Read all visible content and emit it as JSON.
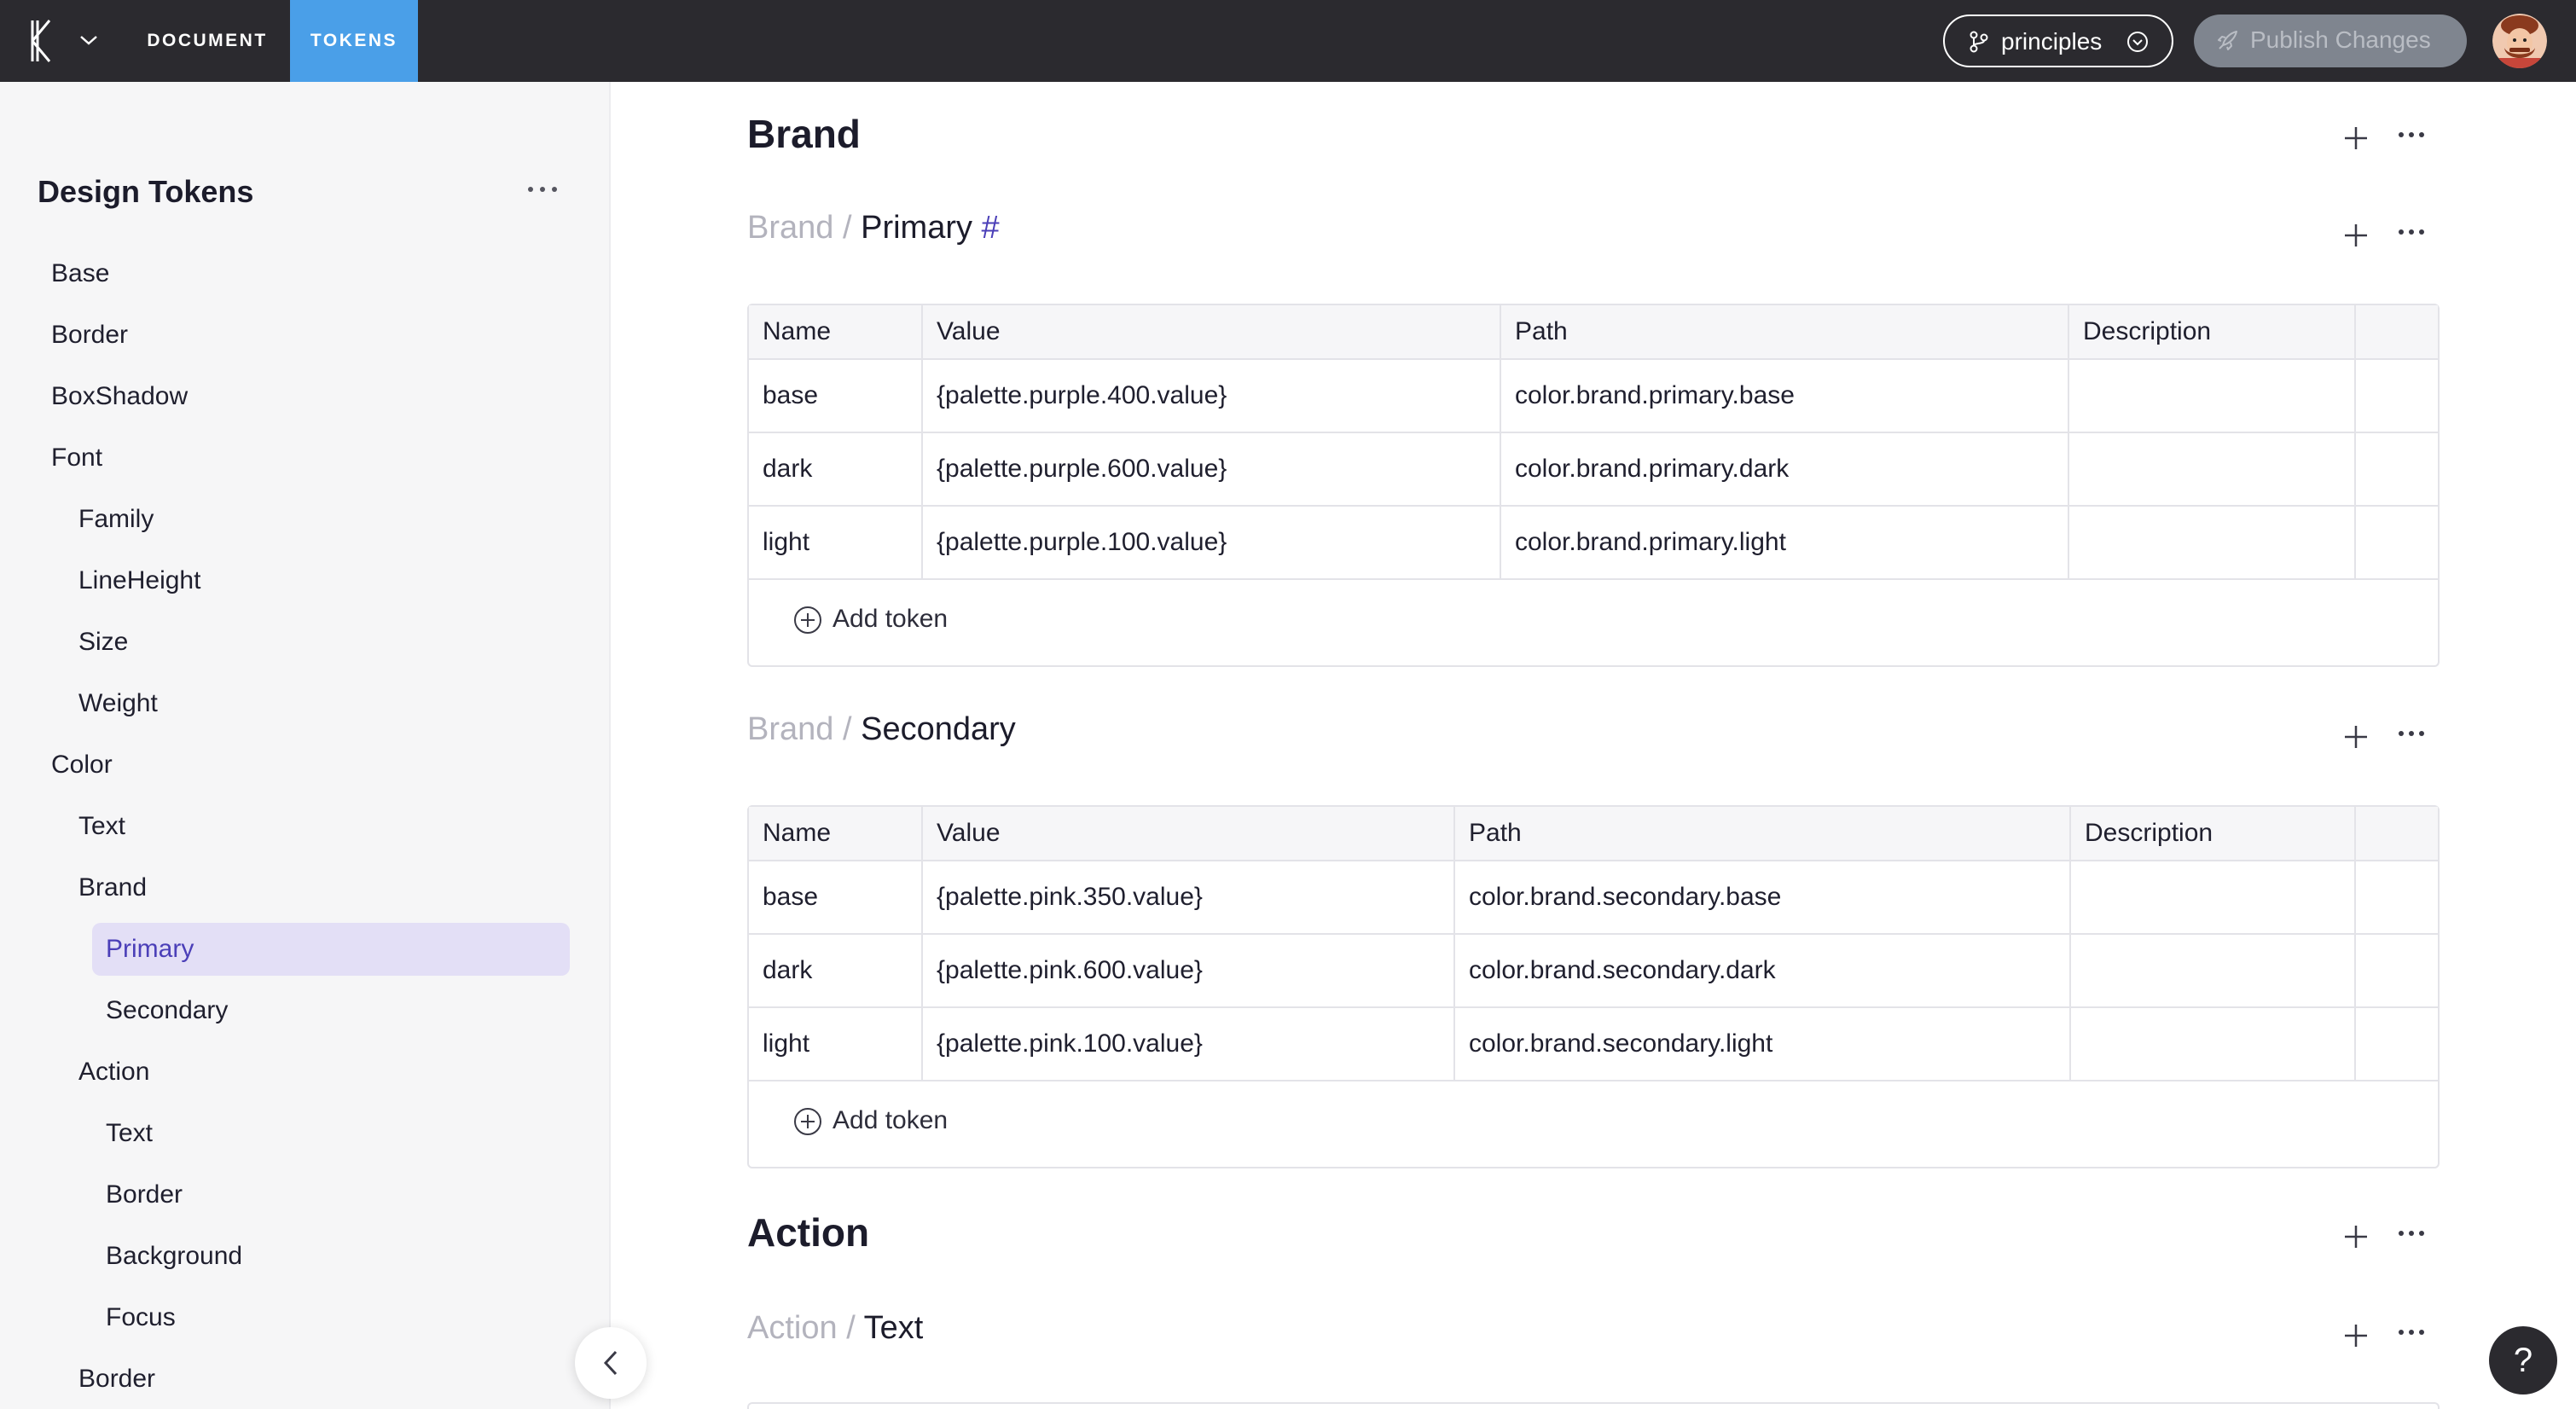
{
  "topbar": {
    "nav": [
      {
        "label": "DOCUMENT"
      },
      {
        "label": "TOKENS"
      }
    ],
    "branch": "principles",
    "publish": "Publish Changes",
    "accent": "#4a9fe8"
  },
  "sidebar": {
    "title": "Design Tokens",
    "items": [
      {
        "label": "Base"
      },
      {
        "label": "Border"
      },
      {
        "label": "BoxShadow"
      },
      {
        "label": "Font"
      },
      {
        "label": "Family"
      },
      {
        "label": "LineHeight"
      },
      {
        "label": "Size"
      },
      {
        "label": "Weight"
      },
      {
        "label": "Color"
      },
      {
        "label": "Text"
      },
      {
        "label": "Brand"
      },
      {
        "label": "Primary"
      },
      {
        "label": "Secondary"
      },
      {
        "label": "Action"
      },
      {
        "label": "Text"
      },
      {
        "label": "Border"
      },
      {
        "label": "Background"
      },
      {
        "label": "Focus"
      },
      {
        "label": "Border"
      }
    ]
  },
  "main": {
    "sections": [
      {
        "title": "Brand",
        "groups": [
          {
            "crumb": "Brand",
            "sep": "/",
            "name": "Primary",
            "hash": "#",
            "headers": [
              "Name",
              "Value",
              "Path",
              "Description"
            ],
            "rows": [
              [
                "base",
                "{palette.purple.400.value}",
                "color.brand.primary.base",
                ""
              ],
              [
                "dark",
                "{palette.purple.600.value}",
                "color.brand.primary.dark",
                ""
              ],
              [
                "light",
                "{palette.purple.100.value}",
                "color.brand.primary.light",
                ""
              ]
            ],
            "add_label": "Add token"
          },
          {
            "crumb": "Brand",
            "sep": "/",
            "name": "Secondary",
            "headers": [
              "Name",
              "Value",
              "Path",
              "Description"
            ],
            "rows": [
              [
                "base",
                "{palette.pink.350.value}",
                "color.brand.secondary.base",
                ""
              ],
              [
                "dark",
                "{palette.pink.600.value}",
                "color.brand.secondary.dark",
                ""
              ],
              [
                "light",
                "{palette.pink.100.value}",
                "color.brand.secondary.light",
                ""
              ]
            ],
            "add_label": "Add token"
          }
        ]
      },
      {
        "title": "Action",
        "groups": [
          {
            "crumb": "Action",
            "sep": "/",
            "name": "Text"
          }
        ]
      }
    ]
  },
  "help": "?"
}
